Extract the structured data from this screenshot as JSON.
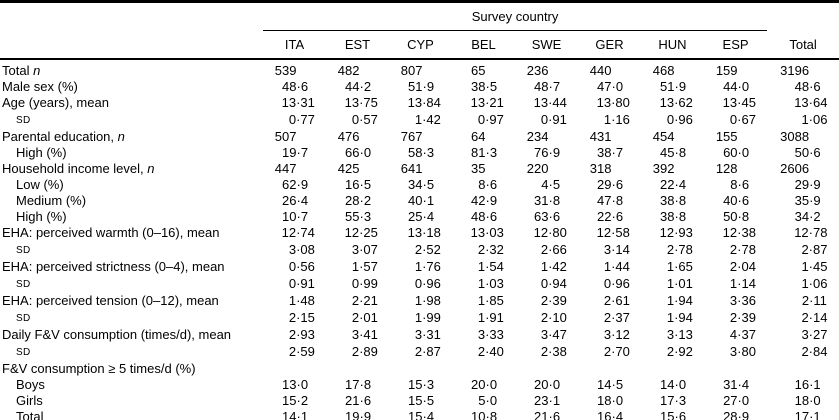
{
  "table": {
    "spanner": "Survey country",
    "columns": [
      "ITA",
      "EST",
      "CYP",
      "BEL",
      "SWE",
      "GER",
      "HUN",
      "ESP"
    ],
    "total_label": "Total",
    "rows": [
      {
        "label": "Total",
        "italic_suffix": "n",
        "indent": false,
        "sd": false,
        "values": [
          "539",
          "482",
          "807",
          "65",
          "236",
          "440",
          "468",
          "159"
        ],
        "total": "3196"
      },
      {
        "label": "Male sex (%)",
        "indent": false,
        "sd": false,
        "values": [
          "48·6",
          "44·2",
          "51·9",
          "38·5",
          "48·7",
          "47·0",
          "51·9",
          "44·0"
        ],
        "total": "48·6"
      },
      {
        "label": "Age (years), mean",
        "indent": false,
        "sd": false,
        "values": [
          "13·31",
          "13·75",
          "13·84",
          "13·21",
          "13·44",
          "13·80",
          "13·62",
          "13·45"
        ],
        "total": "13·64"
      },
      {
        "label": "SD",
        "indent": true,
        "sd": true,
        "values": [
          "0·77",
          "0·57",
          "1·42",
          "0·97",
          "0·91",
          "1·16",
          "0·96",
          "0·67"
        ],
        "total": "1·06"
      },
      {
        "label": "Parental education,",
        "italic_suffix": "n",
        "indent": false,
        "sd": false,
        "values": [
          "507",
          "476",
          "767",
          "64",
          "234",
          "431",
          "454",
          "155"
        ],
        "total": "3088"
      },
      {
        "label": "High (%)",
        "indent": true,
        "sd": false,
        "values": [
          "19·7",
          "66·0",
          "58·3",
          "81·3",
          "76·9",
          "38·7",
          "45·8",
          "60·0"
        ],
        "total": "50·6"
      },
      {
        "label": "Household income level,",
        "italic_suffix": "n",
        "indent": false,
        "sd": false,
        "values": [
          "447",
          "425",
          "641",
          "35",
          "220",
          "318",
          "392",
          "128"
        ],
        "total": "2606"
      },
      {
        "label": "Low (%)",
        "indent": true,
        "sd": false,
        "values": [
          "62·9",
          "16·5",
          "34·5",
          "8·6",
          "4·5",
          "29·6",
          "22·4",
          "8·6"
        ],
        "total": "29·9"
      },
      {
        "label": "Medium (%)",
        "indent": true,
        "sd": false,
        "values": [
          "26·4",
          "28·2",
          "40·1",
          "42·9",
          "31·8",
          "47·8",
          "38·8",
          "40·6"
        ],
        "total": "35·9"
      },
      {
        "label": "High (%)",
        "indent": true,
        "sd": false,
        "values": [
          "10·7",
          "55·3",
          "25·4",
          "48·6",
          "63·6",
          "22·6",
          "38·8",
          "50·8"
        ],
        "total": "34·2"
      },
      {
        "label": "EHA: perceived warmth (0–16), mean",
        "indent": false,
        "sd": false,
        "values": [
          "12·74",
          "12·25",
          "13·18",
          "13·03",
          "12·80",
          "12·58",
          "12·93",
          "12·38"
        ],
        "total": "12·78"
      },
      {
        "label": "SD",
        "indent": true,
        "sd": true,
        "values": [
          "3·08",
          "3·07",
          "2·52",
          "2·32",
          "2·66",
          "3·14",
          "2·78",
          "2·78"
        ],
        "total": "2·87"
      },
      {
        "label": "EHA: perceived strictness (0–4), mean",
        "indent": false,
        "sd": false,
        "values": [
          "0·56",
          "1·57",
          "1·76",
          "1·54",
          "1·42",
          "1·44",
          "1·65",
          "2·04"
        ],
        "total": "1·45"
      },
      {
        "label": "SD",
        "indent": true,
        "sd": true,
        "values": [
          "0·91",
          "0·99",
          "0·96",
          "1·03",
          "0·94",
          "0·96",
          "1·01",
          "1·14"
        ],
        "total": "1·06"
      },
      {
        "label": "EHA: perceived tension (0–12), mean",
        "indent": false,
        "sd": false,
        "values": [
          "1·48",
          "2·21",
          "1·98",
          "1·85",
          "2·39",
          "2·61",
          "1·94",
          "3·36"
        ],
        "total": "2·11"
      },
      {
        "label": "SD",
        "indent": true,
        "sd": true,
        "values": [
          "2·15",
          "2·01",
          "1·99",
          "1·91",
          "2·10",
          "2·37",
          "1·94",
          "2·39"
        ],
        "total": "2·14"
      },
      {
        "label": "Daily F&V consumption (times/d), mean",
        "indent": false,
        "sd": false,
        "values": [
          "2·93",
          "3·41",
          "3·31",
          "3·33",
          "3·47",
          "3·12",
          "3·13",
          "4·37"
        ],
        "total": "3·27"
      },
      {
        "label": "SD",
        "indent": true,
        "sd": true,
        "values": [
          "2·59",
          "2·89",
          "2·87",
          "2·40",
          "2·38",
          "2·70",
          "2·92",
          "3·80"
        ],
        "total": "2·84"
      },
      {
        "label": "F&V consumption ≥ 5 times/d (%)",
        "indent": false,
        "sd": false,
        "values": [],
        "total": ""
      },
      {
        "label": "Boys",
        "indent": true,
        "sd": false,
        "values": [
          "13·0",
          "17·8",
          "15·3",
          "20·0",
          "20·0",
          "14·5",
          "14·0",
          "31·4"
        ],
        "total": "16·1"
      },
      {
        "label": "Girls",
        "indent": true,
        "sd": false,
        "values": [
          "15·2",
          "21·6",
          "15·5",
          "5·0",
          "23·1",
          "18·0",
          "17·3",
          "27·0"
        ],
        "total": "18·0"
      },
      {
        "label": "Total",
        "indent": true,
        "sd": false,
        "values": [
          "14·1",
          "19·9",
          "15·4",
          "10·8",
          "21·6",
          "16·4",
          "15·6",
          "28·9"
        ],
        "total": "17·1"
      }
    ]
  }
}
